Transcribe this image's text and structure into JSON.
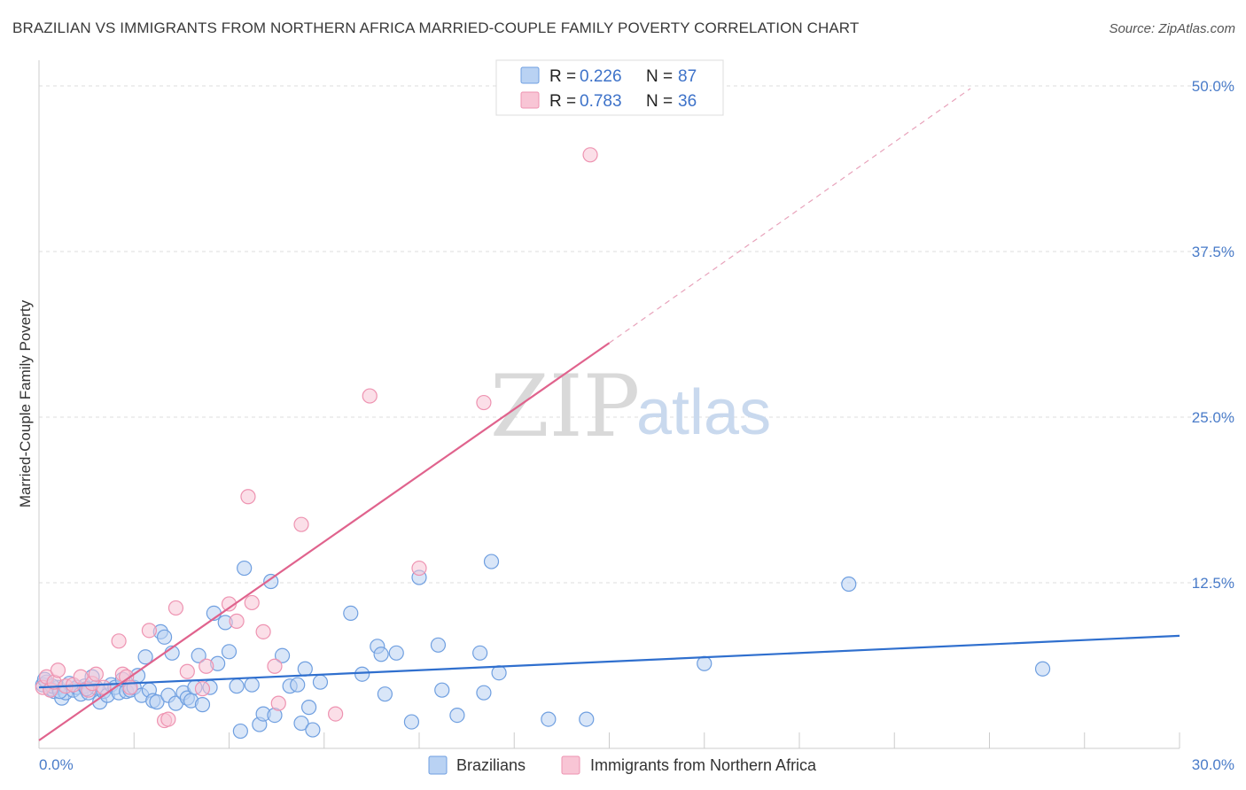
{
  "title": "BRAZILIAN VS IMMIGRANTS FROM NORTHERN AFRICA MARRIED-COUPLE FAMILY POVERTY CORRELATION CHART",
  "source": "Source: ZipAtlas.com",
  "watermark": {
    "zip": "ZIP",
    "atlas": "atlas"
  },
  "legend": {
    "rows": [
      {
        "r_label": "R =",
        "r_value": "0.226",
        "n_label": "N =",
        "n_value": "87",
        "color": "#9ec0ee"
      },
      {
        "r_label": "R =",
        "r_value": "0.783",
        "n_label": "N =",
        "n_value": "36",
        "color": "#f6b8cb"
      }
    ]
  },
  "bottom_legend": [
    {
      "label": "Brazilians",
      "color": "#9ec0ee"
    },
    {
      "label": "Immigrants from Northern Africa",
      "color": "#f6b8cb"
    }
  ],
  "chart_data": {
    "type": "scatter",
    "title": "BRAZILIAN VS IMMIGRANTS FROM NORTHERN AFRICA MARRIED-COUPLE FAMILY POVERTY CORRELATION CHART",
    "xlabel": "",
    "ylabel": "Married-Couple Family Poverty",
    "xlim": [
      0,
      30
    ],
    "ylim": [
      0,
      50
    ],
    "x_tick_labels": [
      "0.0%",
      "30.0%"
    ],
    "y_tick_values": [
      12.5,
      25.0,
      37.5,
      50.0
    ],
    "y_tick_labels": [
      "12.5%",
      "25.0%",
      "37.5%",
      "50.0%"
    ],
    "grid": true,
    "legend_position": "top-center",
    "series": [
      {
        "name": "Brazilians",
        "color": "#6f9fe0",
        "fill": "#b9d2f3",
        "trend": {
          "x": [
            0,
            30
          ],
          "y": [
            4.6,
            8.5
          ]
        },
        "points": [
          [
            0.1,
            4.8
          ],
          [
            0.2,
            5.0
          ],
          [
            0.3,
            4.5
          ],
          [
            0.4,
            4.3
          ],
          [
            0.5,
            4.6
          ],
          [
            0.6,
            3.8
          ],
          [
            0.7,
            4.2
          ],
          [
            0.8,
            4.9
          ],
          [
            0.9,
            4.4
          ],
          [
            1.0,
            4.6
          ],
          [
            1.1,
            4.1
          ],
          [
            1.2,
            4.7
          ],
          [
            1.3,
            4.2
          ],
          [
            1.4,
            5.4
          ],
          [
            1.5,
            4.6
          ],
          [
            1.6,
            3.5
          ],
          [
            1.7,
            4.3
          ],
          [
            1.8,
            4.0
          ],
          [
            1.9,
            4.8
          ],
          [
            2.0,
            4.6
          ],
          [
            2.1,
            4.2
          ],
          [
            2.2,
            5.2
          ],
          [
            2.3,
            4.3
          ],
          [
            2.4,
            4.4
          ],
          [
            2.5,
            4.6
          ],
          [
            2.6,
            5.5
          ],
          [
            2.7,
            4.0
          ],
          [
            2.8,
            6.9
          ],
          [
            2.9,
            4.4
          ],
          [
            3.0,
            3.6
          ],
          [
            3.1,
            3.5
          ],
          [
            3.2,
            8.8
          ],
          [
            3.3,
            8.4
          ],
          [
            3.4,
            4.0
          ],
          [
            3.5,
            7.2
          ],
          [
            3.6,
            3.4
          ],
          [
            3.8,
            4.2
          ],
          [
            3.9,
            3.8
          ],
          [
            4.0,
            3.6
          ],
          [
            4.1,
            4.6
          ],
          [
            4.2,
            7.0
          ],
          [
            4.3,
            3.3
          ],
          [
            4.5,
            4.6
          ],
          [
            4.6,
            10.2
          ],
          [
            4.7,
            6.4
          ],
          [
            4.9,
            9.5
          ],
          [
            5.0,
            7.3
          ],
          [
            5.2,
            4.7
          ],
          [
            5.3,
            1.3
          ],
          [
            5.4,
            13.6
          ],
          [
            5.6,
            4.8
          ],
          [
            5.8,
            1.8
          ],
          [
            5.9,
            2.6
          ],
          [
            6.1,
            12.6
          ],
          [
            6.2,
            2.5
          ],
          [
            6.4,
            7.0
          ],
          [
            6.6,
            4.7
          ],
          [
            6.8,
            4.8
          ],
          [
            6.9,
            1.9
          ],
          [
            7.0,
            6.0
          ],
          [
            7.1,
            3.1
          ],
          [
            7.2,
            1.4
          ],
          [
            7.4,
            5.0
          ],
          [
            8.2,
            10.2
          ],
          [
            8.5,
            5.6
          ],
          [
            8.9,
            7.7
          ],
          [
            9.0,
            7.1
          ],
          [
            9.1,
            4.1
          ],
          [
            9.4,
            7.2
          ],
          [
            9.8,
            2.0
          ],
          [
            10.0,
            12.9
          ],
          [
            10.5,
            7.8
          ],
          [
            10.6,
            4.4
          ],
          [
            11.0,
            2.5
          ],
          [
            11.6,
            7.2
          ],
          [
            11.7,
            4.2
          ],
          [
            11.9,
            14.1
          ],
          [
            12.1,
            5.7
          ],
          [
            13.4,
            2.2
          ],
          [
            14.4,
            2.2
          ],
          [
            17.5,
            6.4
          ],
          [
            21.3,
            12.4
          ],
          [
            26.4,
            6.0
          ],
          [
            0.15,
            5.2
          ],
          [
            0.35,
            4.7
          ],
          [
            0.55,
            4.3
          ],
          [
            1.25,
            4.5
          ]
        ]
      },
      {
        "name": "Immigrants from Northern Africa",
        "color": "#ee93b1",
        "fill": "#f8c5d5",
        "trend": {
          "x": [
            0,
            15
          ],
          "y": [
            0.6,
            30.6
          ]
        },
        "trend_dashed": {
          "x": [
            15,
            24.5
          ],
          "y": [
            30.6,
            49.8
          ]
        },
        "points": [
          [
            0.1,
            4.6
          ],
          [
            0.2,
            5.4
          ],
          [
            0.3,
            4.4
          ],
          [
            0.4,
            5.0
          ],
          [
            0.5,
            5.9
          ],
          [
            0.7,
            4.7
          ],
          [
            0.9,
            4.8
          ],
          [
            1.1,
            5.4
          ],
          [
            1.3,
            4.4
          ],
          [
            1.4,
            4.9
          ],
          [
            1.5,
            5.6
          ],
          [
            1.7,
            4.6
          ],
          [
            2.1,
            8.1
          ],
          [
            2.2,
            5.6
          ],
          [
            2.3,
            5.4
          ],
          [
            2.4,
            4.6
          ],
          [
            2.9,
            8.9
          ],
          [
            3.3,
            2.1
          ],
          [
            3.4,
            2.2
          ],
          [
            3.6,
            10.6
          ],
          [
            3.9,
            5.8
          ],
          [
            4.3,
            4.5
          ],
          [
            4.4,
            6.2
          ],
          [
            5.0,
            10.9
          ],
          [
            5.2,
            9.6
          ],
          [
            5.5,
            19.0
          ],
          [
            5.6,
            11.0
          ],
          [
            5.9,
            8.8
          ],
          [
            6.2,
            6.2
          ],
          [
            6.3,
            3.4
          ],
          [
            6.9,
            16.9
          ],
          [
            7.8,
            2.6
          ],
          [
            8.7,
            26.6
          ],
          [
            10.0,
            13.6
          ],
          [
            11.7,
            26.1
          ],
          [
            14.5,
            44.8
          ]
        ]
      }
    ]
  }
}
